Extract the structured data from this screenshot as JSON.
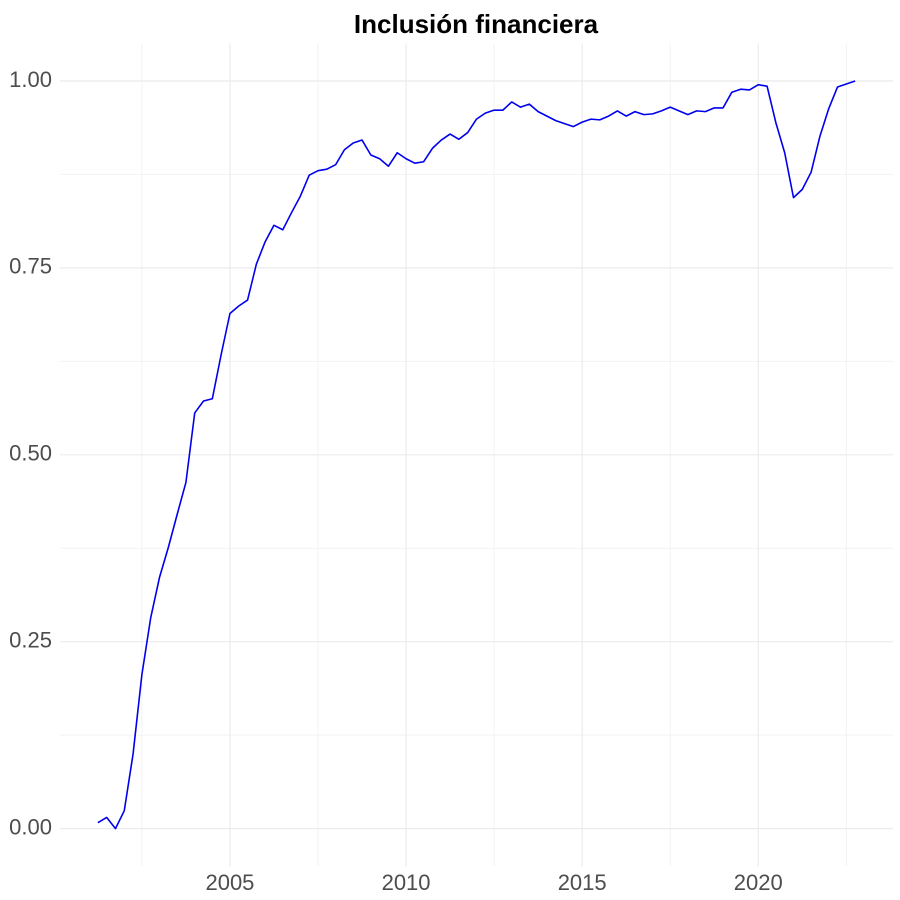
{
  "chart_data": {
    "type": "line",
    "title": "Inclusión financiera",
    "x": [
      2001.25,
      2001.5,
      2001.75,
      2002,
      2002.25,
      2002.5,
      2002.75,
      2003,
      2003.25,
      2003.5,
      2003.75,
      2004,
      2004.25,
      2004.5,
      2004.75,
      2005,
      2005.25,
      2005.5,
      2005.75,
      2006,
      2006.25,
      2006.5,
      2006.75,
      2007,
      2007.25,
      2007.5,
      2007.75,
      2008,
      2008.25,
      2008.5,
      2008.75,
      2009,
      2009.25,
      2009.5,
      2009.75,
      2010,
      2010.25,
      2010.5,
      2010.75,
      2011,
      2011.25,
      2011.5,
      2011.75,
      2012,
      2012.25,
      2012.5,
      2012.75,
      2013,
      2013.25,
      2013.5,
      2013.75,
      2014,
      2014.25,
      2014.5,
      2014.75,
      2015,
      2015.25,
      2015.5,
      2015.75,
      2016,
      2016.25,
      2016.5,
      2016.75,
      2017,
      2017.25,
      2017.5,
      2017.75,
      2018,
      2018.25,
      2018.5,
      2018.75,
      2019,
      2019.25,
      2019.5,
      2019.75,
      2020,
      2020.25,
      2020.5,
      2020.75,
      2021,
      2021.25,
      2021.5,
      2021.75,
      2022,
      2022.25,
      2022.5,
      2022.75
    ],
    "series": [
      {
        "color": "#0000ee",
        "values": [
          0.008,
          0.015,
          0.0,
          0.024,
          0.1,
          0.206,
          0.282,
          0.336,
          0.376,
          0.42,
          0.463,
          0.556,
          0.572,
          0.575,
          0.634,
          0.689,
          0.699,
          0.707,
          0.755,
          0.785,
          0.807,
          0.801,
          0.824,
          0.846,
          0.874,
          0.88,
          0.882,
          0.888,
          0.908,
          0.917,
          0.921,
          0.901,
          0.896,
          0.886,
          0.904,
          0.896,
          0.89,
          0.892,
          0.91,
          0.921,
          0.929,
          0.922,
          0.931,
          0.949,
          0.957,
          0.961,
          0.961,
          0.972,
          0.965,
          0.969,
          0.959,
          0.953,
          0.947,
          0.943,
          0.939,
          0.945,
          0.949,
          0.948,
          0.953,
          0.96,
          0.953,
          0.959,
          0.955,
          0.956,
          0.96,
          0.965,
          0.96,
          0.955,
          0.96,
          0.959,
          0.964,
          0.964,
          0.985,
          0.989,
          0.988,
          0.995,
          0.993,
          0.944,
          0.904,
          0.844,
          0.855,
          0.878,
          0.926,
          0.963,
          0.992,
          0.996,
          1.0
        ]
      }
    ],
    "xlim": [
      2000.175,
      2023.825
    ],
    "ylim": [
      -0.05,
      1.05
    ],
    "xticks": [
      2005,
      2010,
      2015,
      2020
    ],
    "yticks": [
      {
        "value": 0,
        "label": "0.00"
      },
      0.25,
      {
        "value": 0.5,
        "label": "0.50"
      },
      0.75,
      {
        "value": 1,
        "label": "1.00"
      }
    ],
    "xminor": [
      2002.5,
      2007.5,
      2012.5,
      2017.5,
      2022.5
    ],
    "yminor": [
      0.125,
      0.375,
      0.625,
      0.875
    ],
    "grid": true
  }
}
